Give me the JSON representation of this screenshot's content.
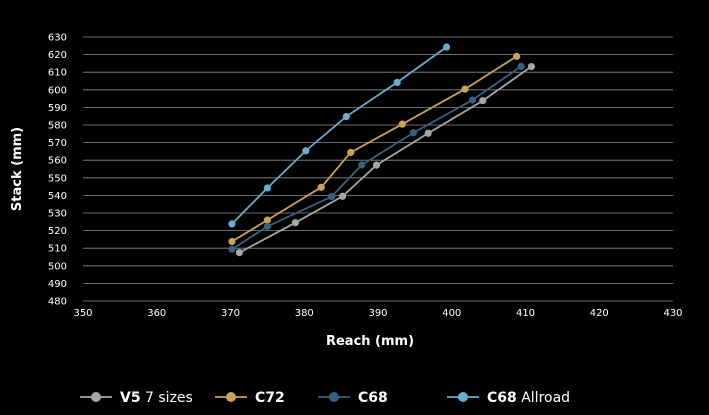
{
  "chart_data": {
    "type": "line",
    "xlabel": "Reach (mm)",
    "ylabel": "Stack (mm)",
    "xlim": [
      350,
      430
    ],
    "ylim": [
      480,
      630
    ],
    "xticks": [
      350,
      360,
      370,
      380,
      390,
      400,
      410,
      420,
      430
    ],
    "yticks": [
      480,
      490,
      500,
      510,
      520,
      530,
      540,
      550,
      560,
      570,
      580,
      590,
      600,
      610,
      620,
      630
    ],
    "grid": true,
    "legend_position": "bottom",
    "series": [
      {
        "name": "V5 7 sizes",
        "name_bold": "V5",
        "name_rest": " 7 sizes",
        "color": "#a6a6a6",
        "points": [
          [
            371.2,
            507.5
          ],
          [
            378.8,
            524.5
          ],
          [
            385.2,
            539.5
          ],
          [
            389.8,
            557.2
          ],
          [
            396.8,
            575.3
          ],
          [
            404.2,
            593.8
          ],
          [
            410.8,
            613.2
          ]
        ]
      },
      {
        "name": "C72",
        "name_bold": "C72",
        "name_rest": "",
        "color": "#c9a454",
        "points": [
          [
            370.2,
            513.8
          ],
          [
            375.0,
            526.0
          ],
          [
            382.3,
            544.6
          ],
          [
            386.3,
            564.4
          ],
          [
            393.3,
            580.5
          ],
          [
            401.8,
            600.4
          ],
          [
            408.8,
            619.0
          ]
        ]
      },
      {
        "name": "C68",
        "name_bold": "C68",
        "name_rest": "",
        "color": "#37627f",
        "points": [
          [
            370.2,
            509.4
          ],
          [
            375.0,
            522.4
          ],
          [
            383.7,
            539.3
          ],
          [
            387.8,
            557.3
          ],
          [
            394.8,
            575.6
          ],
          [
            402.8,
            594.2
          ],
          [
            409.4,
            613.3
          ]
        ]
      },
      {
        "name": "C68 Allroad",
        "name_bold": "C68",
        "name_rest": " Allroad",
        "color": "#6aaccd",
        "points": [
          [
            370.2,
            523.8
          ],
          [
            375.0,
            544.2
          ],
          [
            380.2,
            565.3
          ],
          [
            385.7,
            584.8
          ],
          [
            392.6,
            604.2
          ],
          [
            399.3,
            624.3
          ]
        ]
      }
    ]
  }
}
